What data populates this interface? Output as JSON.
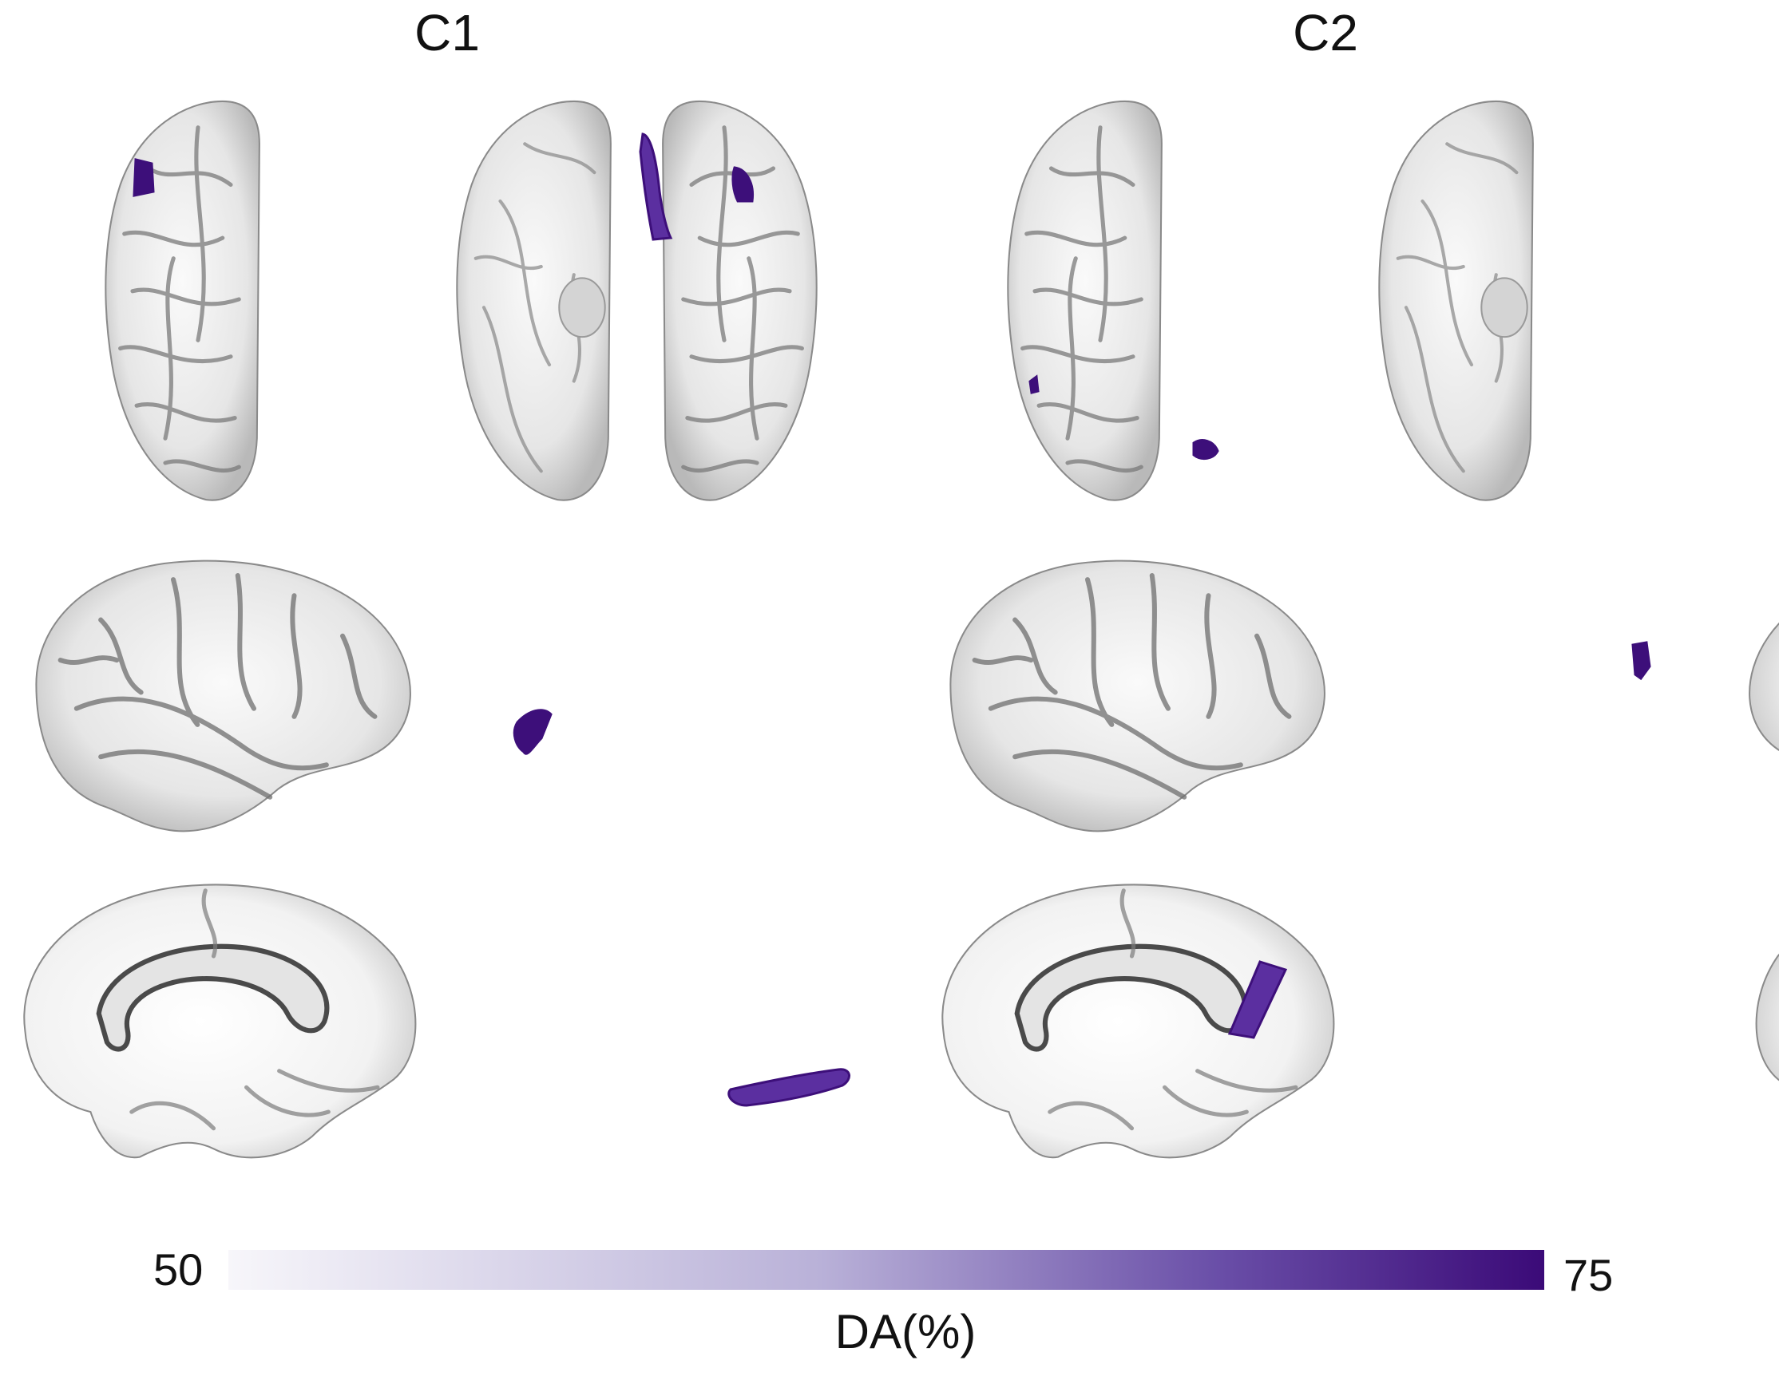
{
  "panels": [
    {
      "title": "C1"
    },
    {
      "title": "C2"
    }
  ],
  "colorbar": {
    "min_label": "50",
    "max_label": "75",
    "title": "DA(%)",
    "color_low": "#f7f6fa",
    "color_high": "#3b0a78"
  },
  "colors": {
    "highlight": "#5b2fa0",
    "highlight_dark": "#3d0f7a",
    "cortex_light": "#f0f0f0",
    "cortex_shadow": "#6e6e6e"
  }
}
